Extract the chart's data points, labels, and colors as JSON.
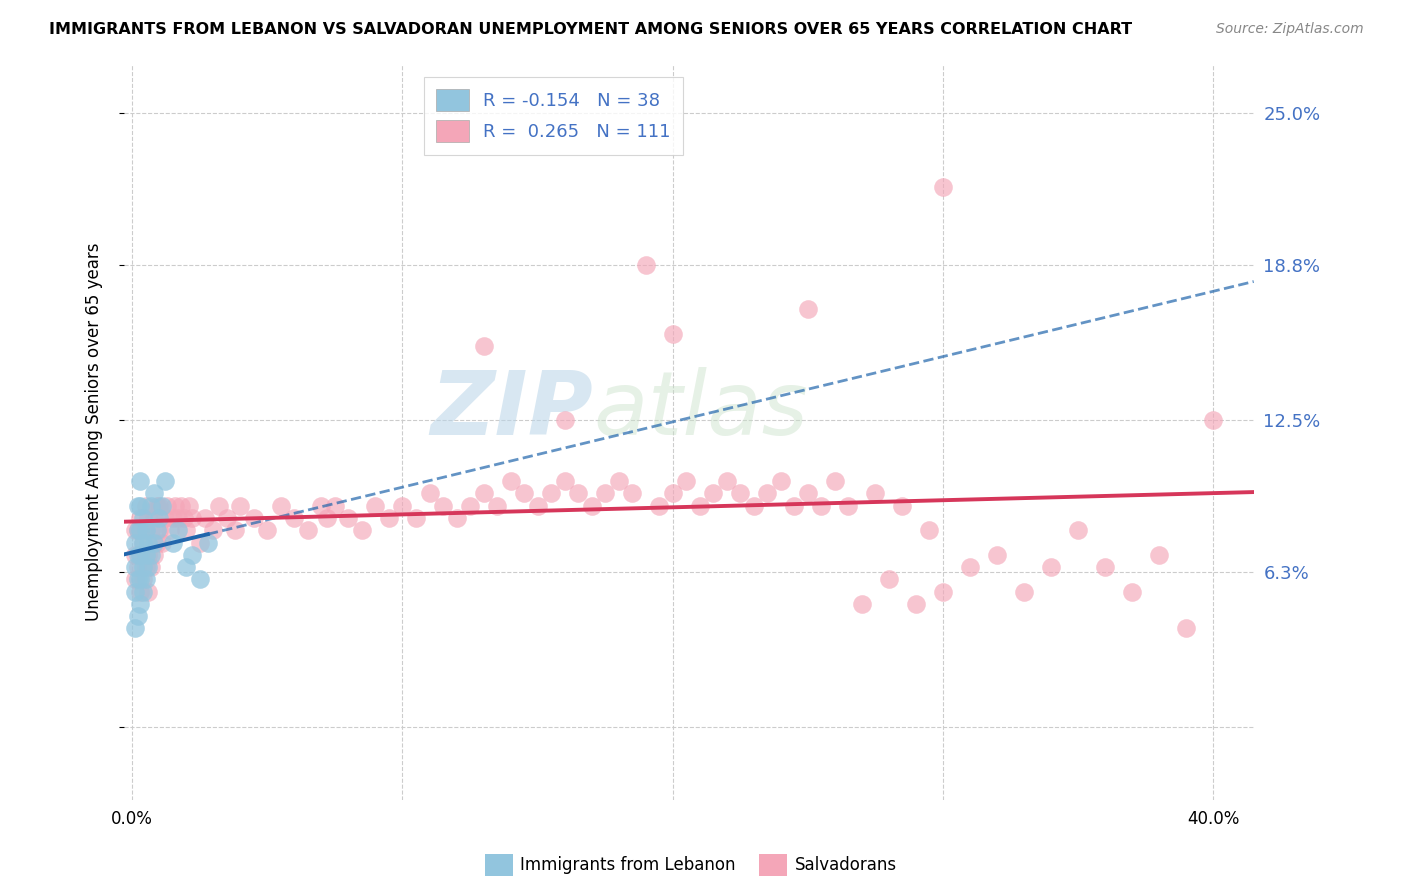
{
  "title": "IMMIGRANTS FROM LEBANON VS SALVADORAN UNEMPLOYMENT AMONG SENIORS OVER 65 YEARS CORRELATION CHART",
  "source": "Source: ZipAtlas.com",
  "ylabel": "Unemployment Among Seniors over 65 years",
  "y_ticks": [
    0.0,
    0.063,
    0.125,
    0.188,
    0.25
  ],
  "y_tick_labels": [
    "",
    "6.3%",
    "12.5%",
    "18.8%",
    "25.0%"
  ],
  "x_ticks": [
    0.0,
    0.1,
    0.2,
    0.3,
    0.4
  ],
  "xlim": [
    -0.003,
    0.415
  ],
  "ylim": [
    -0.03,
    0.27
  ],
  "legend_R1": "-0.154",
  "legend_N1": "38",
  "legend_R2": "0.265",
  "legend_N2": "111",
  "color_blue": "#92c5de",
  "color_pink": "#f4a6b8",
  "color_blue_line": "#2166ac",
  "color_pink_line": "#d6365a",
  "watermark_ZIP": "ZIP",
  "watermark_atlas": "atlas",
  "blue_x": [
    0.001,
    0.001,
    0.001,
    0.001,
    0.002,
    0.002,
    0.002,
    0.002,
    0.002,
    0.003,
    0.003,
    0.003,
    0.003,
    0.003,
    0.003,
    0.004,
    0.004,
    0.004,
    0.004,
    0.005,
    0.005,
    0.005,
    0.006,
    0.006,
    0.007,
    0.007,
    0.008,
    0.008,
    0.009,
    0.01,
    0.011,
    0.012,
    0.015,
    0.017,
    0.02,
    0.022,
    0.025,
    0.028
  ],
  "blue_y": [
    0.04,
    0.055,
    0.065,
    0.075,
    0.045,
    0.06,
    0.07,
    0.08,
    0.09,
    0.05,
    0.06,
    0.07,
    0.08,
    0.09,
    0.1,
    0.055,
    0.065,
    0.075,
    0.085,
    0.06,
    0.07,
    0.08,
    0.065,
    0.075,
    0.07,
    0.09,
    0.075,
    0.095,
    0.08,
    0.085,
    0.09,
    0.1,
    0.075,
    0.08,
    0.065,
    0.07,
    0.06,
    0.075
  ],
  "pink_x": [
    0.001,
    0.001,
    0.001,
    0.002,
    0.002,
    0.003,
    0.003,
    0.003,
    0.004,
    0.004,
    0.005,
    0.005,
    0.005,
    0.006,
    0.006,
    0.006,
    0.007,
    0.007,
    0.008,
    0.008,
    0.009,
    0.009,
    0.01,
    0.01,
    0.011,
    0.012,
    0.013,
    0.014,
    0.015,
    0.016,
    0.017,
    0.018,
    0.019,
    0.02,
    0.021,
    0.022,
    0.025,
    0.027,
    0.03,
    0.032,
    0.035,
    0.038,
    0.04,
    0.045,
    0.05,
    0.055,
    0.06,
    0.065,
    0.07,
    0.072,
    0.075,
    0.08,
    0.085,
    0.09,
    0.095,
    0.1,
    0.105,
    0.11,
    0.115,
    0.12,
    0.125,
    0.13,
    0.135,
    0.14,
    0.145,
    0.15,
    0.155,
    0.16,
    0.165,
    0.17,
    0.175,
    0.18,
    0.185,
    0.19,
    0.195,
    0.2,
    0.205,
    0.21,
    0.215,
    0.22,
    0.225,
    0.23,
    0.235,
    0.24,
    0.245,
    0.25,
    0.255,
    0.26,
    0.265,
    0.27,
    0.275,
    0.28,
    0.285,
    0.29,
    0.295,
    0.3,
    0.31,
    0.32,
    0.33,
    0.34,
    0.35,
    0.36,
    0.37,
    0.38,
    0.39,
    0.4,
    0.3,
    0.2,
    0.16,
    0.25,
    0.13
  ],
  "pink_y": [
    0.06,
    0.07,
    0.08,
    0.065,
    0.08,
    0.055,
    0.07,
    0.085,
    0.06,
    0.075,
    0.065,
    0.08,
    0.09,
    0.055,
    0.07,
    0.085,
    0.065,
    0.08,
    0.07,
    0.085,
    0.075,
    0.09,
    0.08,
    0.09,
    0.075,
    0.085,
    0.09,
    0.08,
    0.085,
    0.09,
    0.085,
    0.09,
    0.085,
    0.08,
    0.09,
    0.085,
    0.075,
    0.085,
    0.08,
    0.09,
    0.085,
    0.08,
    0.09,
    0.085,
    0.08,
    0.09,
    0.085,
    0.08,
    0.09,
    0.085,
    0.09,
    0.085,
    0.08,
    0.09,
    0.085,
    0.09,
    0.085,
    0.095,
    0.09,
    0.085,
    0.09,
    0.095,
    0.09,
    0.1,
    0.095,
    0.09,
    0.095,
    0.1,
    0.095,
    0.09,
    0.095,
    0.1,
    0.095,
    0.188,
    0.09,
    0.095,
    0.1,
    0.09,
    0.095,
    0.1,
    0.095,
    0.09,
    0.095,
    0.1,
    0.09,
    0.095,
    0.09,
    0.1,
    0.09,
    0.05,
    0.095,
    0.06,
    0.09,
    0.05,
    0.08,
    0.055,
    0.065,
    0.07,
    0.055,
    0.065,
    0.08,
    0.065,
    0.055,
    0.07,
    0.04,
    0.125,
    0.22,
    0.16,
    0.125,
    0.17,
    0.155
  ]
}
